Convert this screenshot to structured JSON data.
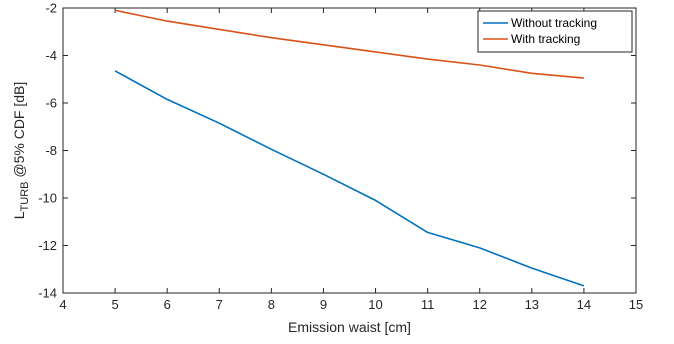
{
  "chart_data": {
    "type": "line",
    "xlabel": "Emission waist [cm]",
    "ylabel": {
      "main": "L",
      "sub": "TURB",
      "rest": " @5% CDF [dB]"
    },
    "xlim": [
      4,
      15
    ],
    "ylim": [
      -14,
      -2
    ],
    "xticks": [
      4,
      5,
      6,
      7,
      8,
      9,
      10,
      11,
      12,
      13,
      14,
      15
    ],
    "yticks": [
      -14,
      -12,
      -10,
      -8,
      -6,
      -4,
      -2
    ],
    "grid": false,
    "legend_position": "top-right",
    "x": [
      5,
      6,
      7,
      8,
      9,
      10,
      11,
      12,
      13,
      14
    ],
    "series": [
      {
        "name": "Without tracking",
        "color": "#0072BD",
        "values": [
          -4.65,
          -5.85,
          -6.85,
          -7.95,
          -9.0,
          -10.1,
          -11.45,
          -12.1,
          -12.95,
          -13.7
        ]
      },
      {
        "name": "With tracking",
        "color": "#D95319",
        "values": [
          -2.1,
          -2.55,
          -2.9,
          -3.25,
          -3.55,
          -3.85,
          -4.15,
          -4.4,
          -4.75,
          -4.95
        ]
      }
    ]
  }
}
